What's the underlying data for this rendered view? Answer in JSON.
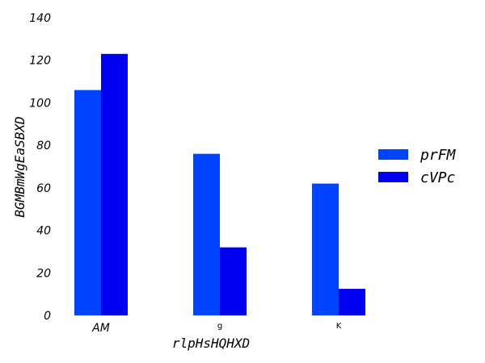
{
  "chart_data": {
    "type": "bar",
    "title": "",
    "xlabel": "rlpHsHQHXD",
    "ylabel": "BGMBmWgEaSBXD",
    "categories": [
      "AM",
      "g",
      "K"
    ],
    "series": [
      {
        "name": "prFM",
        "color": "#0043ff",
        "values": [
          106,
          76,
          62
        ]
      },
      {
        "name": "cVPc",
        "color": "#0000f0",
        "values": [
          123,
          32,
          12.5
        ]
      }
    ],
    "ylim": [
      0,
      140
    ],
    "yticks": [
      0,
      20,
      40,
      60,
      80,
      100,
      120,
      140
    ],
    "grid": false,
    "legend": "right"
  }
}
